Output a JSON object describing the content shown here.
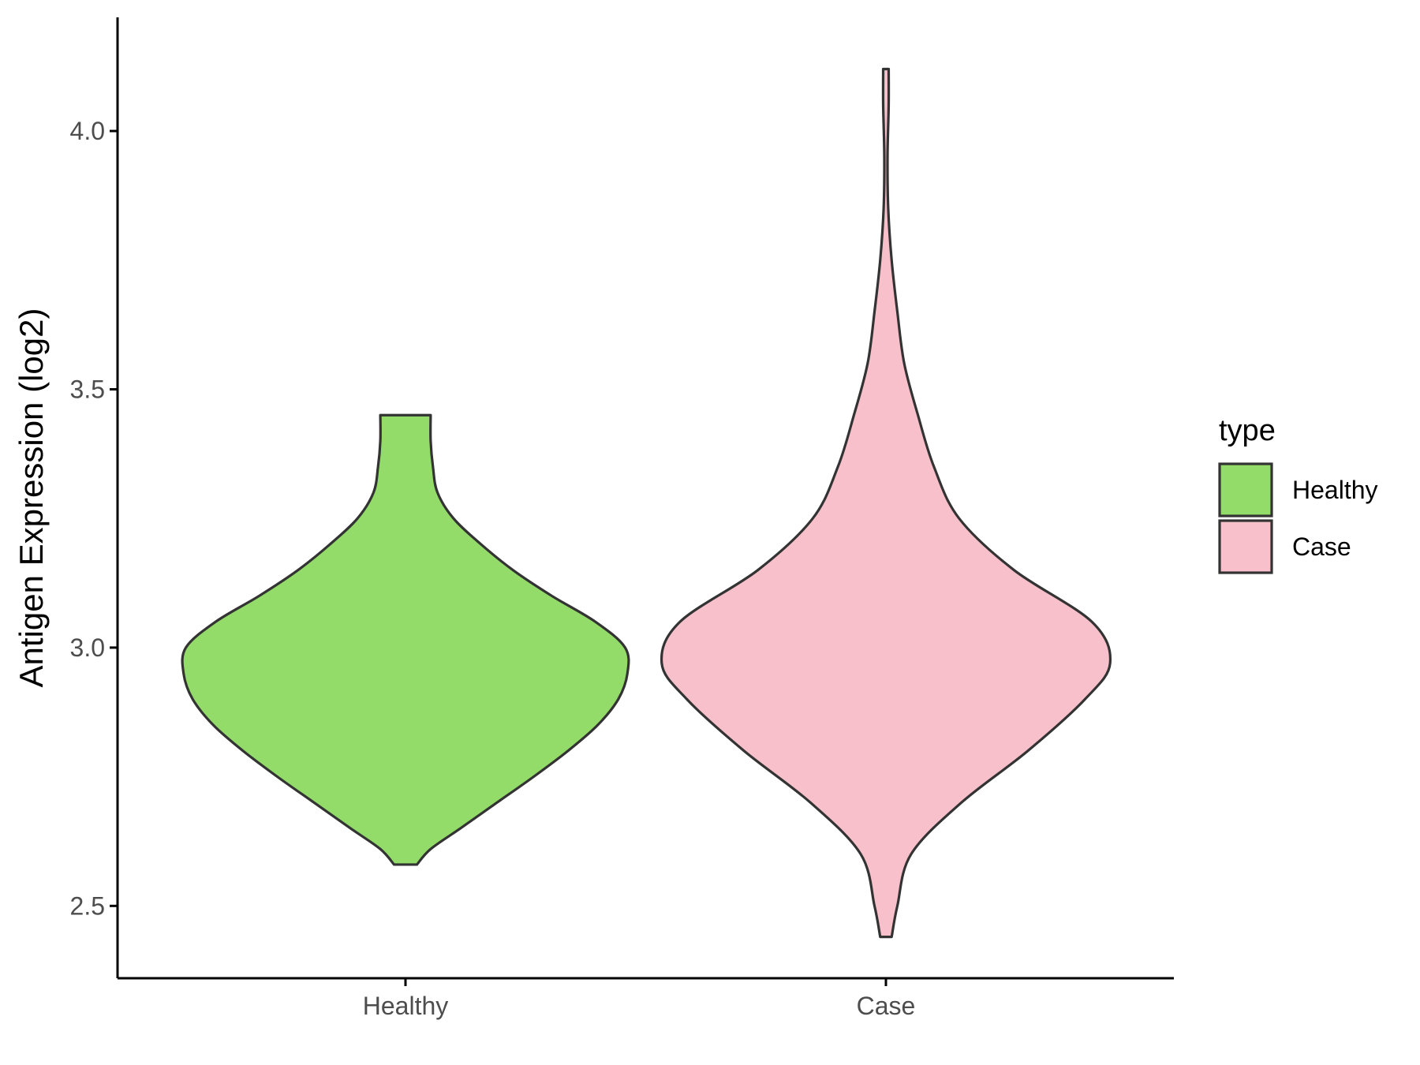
{
  "chart_data": {
    "type": "violin",
    "title": "",
    "xlabel": "",
    "ylabel": "Antigen Expression (log2)",
    "ylim": [
      2.36,
      4.22
    ],
    "yticks": [
      2.5,
      3.0,
      3.5,
      4.0
    ],
    "ytick_labels": [
      "2.5",
      "3.0",
      "3.5",
      "4.0"
    ],
    "categories": [
      "Healthy",
      "Case"
    ],
    "grid": false,
    "legend": {
      "title": "type",
      "position": "right",
      "entries": [
        "Healthy",
        "Case"
      ]
    },
    "series": [
      {
        "name": "Healthy",
        "color": "#93dc6a",
        "y_min": 2.58,
        "y_max": 3.45,
        "density_profile": [
          [
            2.58,
            0.05
          ],
          [
            2.61,
            0.11
          ],
          [
            2.65,
            0.24
          ],
          [
            2.7,
            0.4
          ],
          [
            2.75,
            0.56
          ],
          [
            2.8,
            0.71
          ],
          [
            2.85,
            0.84
          ],
          [
            2.9,
            0.93
          ],
          [
            2.95,
            0.97
          ],
          [
            3.0,
            0.96
          ],
          [
            3.05,
            0.83
          ],
          [
            3.1,
            0.64
          ],
          [
            3.15,
            0.47
          ],
          [
            3.2,
            0.33
          ],
          [
            3.25,
            0.21
          ],
          [
            3.3,
            0.14
          ],
          [
            3.35,
            0.12
          ],
          [
            3.4,
            0.11
          ],
          [
            3.45,
            0.11
          ]
        ]
      },
      {
        "name": "Case",
        "color": "#f7c0cb",
        "y_min": 2.44,
        "y_max": 4.12,
        "density_profile": [
          [
            2.44,
            0.025
          ],
          [
            2.5,
            0.05
          ],
          [
            2.6,
            0.11
          ],
          [
            2.7,
            0.33
          ],
          [
            2.8,
            0.62
          ],
          [
            2.9,
            0.87
          ],
          [
            2.97,
            0.98
          ],
          [
            3.05,
            0.9
          ],
          [
            3.15,
            0.56
          ],
          [
            3.25,
            0.32
          ],
          [
            3.35,
            0.21
          ],
          [
            3.45,
            0.14
          ],
          [
            3.55,
            0.08
          ],
          [
            3.65,
            0.05
          ],
          [
            3.75,
            0.025
          ],
          [
            3.85,
            0.01
          ],
          [
            3.95,
            0.007
          ],
          [
            4.05,
            0.012
          ],
          [
            4.12,
            0.012
          ]
        ]
      }
    ]
  }
}
